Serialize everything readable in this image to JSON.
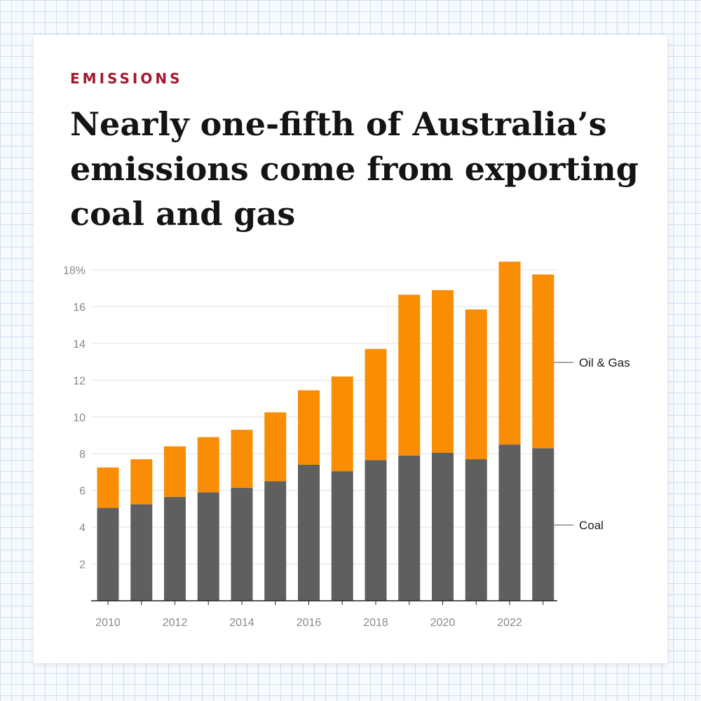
{
  "header": {
    "kicker": "EMISSIONS",
    "title": "Nearly one-fifth of Australia’s emissions come from exporting coal and gas"
  },
  "colors": {
    "coal": "#5f5f5f",
    "oil_gas": "#f98e05",
    "grid": "#e3e3e3",
    "axis": "#222222",
    "kicker": "#a3192f"
  },
  "chart_data": {
    "type": "bar",
    "stacked": true,
    "title": "Nearly one-fifth of Australia’s emissions come from exporting coal and gas",
    "xlabel": "",
    "ylabel": "",
    "categories": [
      "2010",
      "2011",
      "2012",
      "2013",
      "2014",
      "2015",
      "2016",
      "2017",
      "2018",
      "2019",
      "2020",
      "2021",
      "2022",
      "2023"
    ],
    "series": [
      {
        "name": "Coal",
        "values": [
          5.05,
          5.25,
          5.65,
          5.9,
          6.15,
          6.5,
          7.4,
          7.05,
          7.65,
          7.9,
          8.05,
          7.7,
          8.5,
          8.3
        ]
      },
      {
        "name": "Oil & Gas",
        "values": [
          2.2,
          2.45,
          2.75,
          3.0,
          3.15,
          3.75,
          4.05,
          5.15,
          6.05,
          8.75,
          8.85,
          8.15,
          9.95,
          9.45
        ]
      }
    ],
    "ylim": [
      0,
      18
    ],
    "y_ticks": [
      2,
      4,
      6,
      8,
      10,
      12,
      14,
      16,
      18
    ],
    "y_tick_labels": [
      "2",
      "4",
      "6",
      "8",
      "10",
      "12",
      "14",
      "16",
      "18%"
    ],
    "x_tick_labels": [
      "2010",
      "2012",
      "2014",
      "2016",
      "2018",
      "2020",
      "2022"
    ],
    "legend": [
      {
        "label": "Oil & Gas",
        "series": "Oil & Gas"
      },
      {
        "label": "Coal",
        "series": "Coal"
      }
    ],
    "legend_placement": "right, aligned to last bar",
    "grid": true
  }
}
